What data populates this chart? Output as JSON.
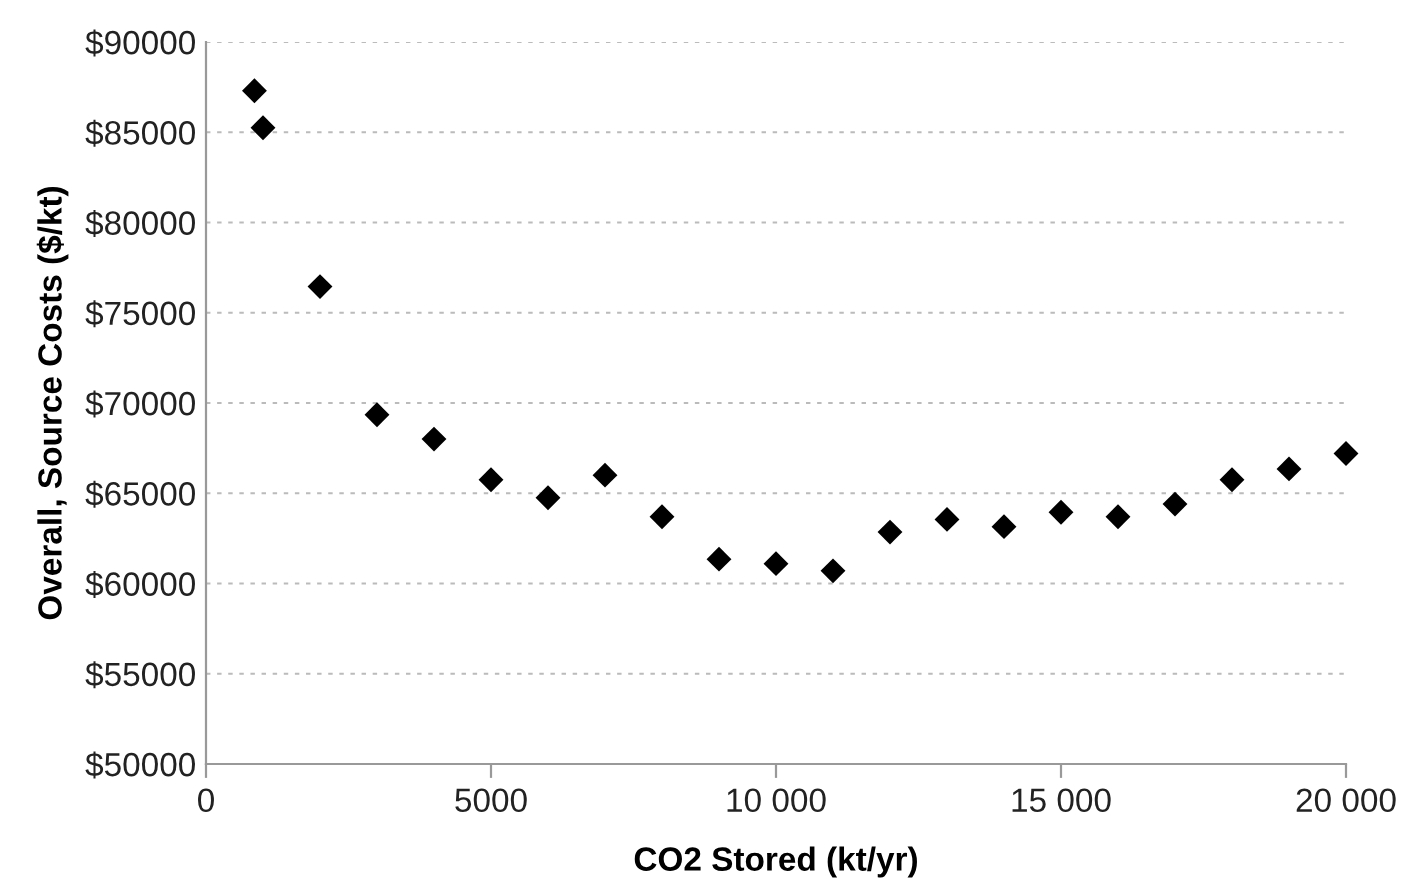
{
  "chart_data": {
    "type": "scatter",
    "xlabel": "CO2 Stored (kt/yr)",
    "ylabel": "Overall, Source Costs ($/kt)",
    "x": [
      850,
      1000,
      2000,
      3000,
      4000,
      5000,
      6000,
      7000,
      8000,
      9000,
      10000,
      11000,
      12000,
      13000,
      14000,
      15000,
      16000,
      17000,
      18000,
      19000,
      20000
    ],
    "series": [
      {
        "color": "#000000",
        "values": [
          87300,
          85250,
          76450,
          69350,
          68000,
          65750,
          64750,
          66000,
          63700,
          61350,
          61100,
          60700,
          62850,
          63550,
          63150,
          63950,
          63700,
          64400,
          65750,
          66350,
          67200
        ]
      }
    ],
    "marker": "diamond",
    "grid": "y",
    "xlim": [
      0,
      20000
    ],
    "xticks": [
      0,
      5000,
      {
        "value": 10000,
        "label": "10 000"
      },
      {
        "value": 15000,
        "label": "15 000"
      },
      {
        "value": 20000,
        "label": "20 000"
      }
    ],
    "ylim": [
      50000,
      90000
    ],
    "yticks": [
      {
        "value": 50000,
        "label": "$50000"
      },
      {
        "value": 55000,
        "label": "$55000"
      },
      {
        "value": 60000,
        "label": "$60000"
      },
      {
        "value": 65000,
        "label": "$65000"
      },
      {
        "value": 70000,
        "label": "$70000"
      },
      {
        "value": 75000,
        "label": "$75000"
      },
      {
        "value": 80000,
        "label": "$80000"
      },
      {
        "value": 85000,
        "label": "$85000"
      },
      {
        "value": 90000,
        "label": "$90000"
      }
    ]
  }
}
